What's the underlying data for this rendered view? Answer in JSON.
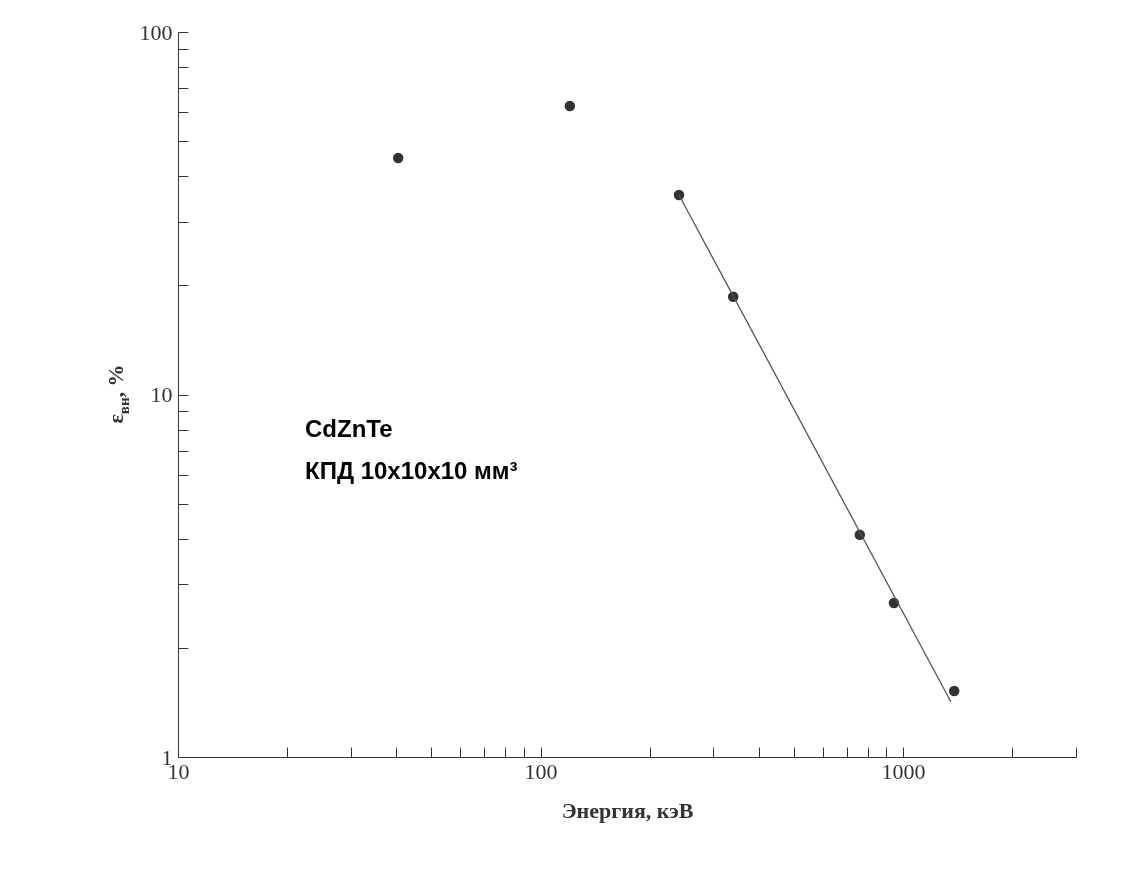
{
  "chart_data": {
    "type": "scatter",
    "xlabel": "Энергия, кэВ",
    "ylabel": "ε$_{вн}$, %",
    "annotations": [
      "CdZnTe",
      "КПД 10x10x10 мм³"
    ],
    "log": "xy",
    "grid": false,
    "marker": "circle",
    "xlim": [
      10,
      3000
    ],
    "ylim": [
      1,
      100
    ],
    "xticks": [
      10,
      {
        "value": 20,
        "label": null
      },
      {
        "value": 30,
        "label": null
      },
      {
        "value": 40,
        "label": null
      },
      {
        "value": 50,
        "label": null
      },
      {
        "value": 60,
        "label": null
      },
      {
        "value": 70,
        "label": null
      },
      {
        "value": 80,
        "label": null
      },
      {
        "value": 90,
        "label": null
      },
      100,
      {
        "value": 200,
        "label": null
      },
      {
        "value": 300,
        "label": null
      },
      {
        "value": 400,
        "label": null
      },
      {
        "value": 500,
        "label": null
      },
      {
        "value": 600,
        "label": null
      },
      {
        "value": 700,
        "label": null
      },
      {
        "value": 800,
        "label": null
      },
      {
        "value": 900,
        "label": null
      },
      1000,
      {
        "value": 2000,
        "label": null
      },
      {
        "value": 3000,
        "label": null
      }
    ],
    "yticks": [
      1,
      {
        "value": 2,
        "label": null
      },
      {
        "value": 3,
        "label": null
      },
      {
        "value": 4,
        "label": null
      },
      {
        "value": 5,
        "label": null
      },
      {
        "value": 6,
        "label": null
      },
      {
        "value": 7,
        "label": null
      },
      {
        "value": 8,
        "label": null
      },
      {
        "value": 9,
        "label": null
      },
      10,
      {
        "value": 20,
        "label": null
      },
      {
        "value": 30,
        "label": null
      },
      {
        "value": 40,
        "label": null
      },
      {
        "value": 50,
        "label": null
      },
      {
        "value": 60,
        "label": null
      },
      {
        "value": 70,
        "label": null
      },
      {
        "value": 80,
        "label": null
      },
      {
        "value": 90,
        "label": null
      },
      100
    ],
    "series": [
      {
        "color": "#333333",
        "x": [
          40.5,
          120.5,
          241,
          340,
          760,
          944,
          1384
        ],
        "values": [
          44.9,
          62.5,
          35.5,
          18.6,
          4.1,
          2.66,
          1.52
        ]
      },
      {
        "type": "line",
        "marker": "none",
        "color": "#555555",
        "x": [
          241,
          1355
        ],
        "values": [
          35.5,
          1.42
        ]
      }
    ]
  }
}
